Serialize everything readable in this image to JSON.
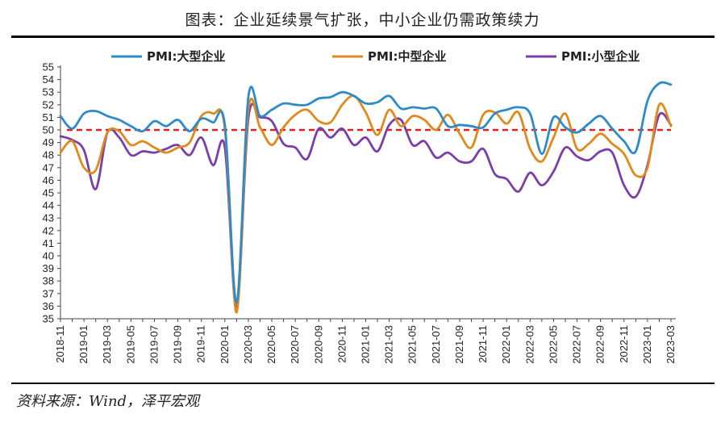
{
  "title": "图表：企业延续景气扩张，中小企业仍需政策续力",
  "source": "资料来源：Wind，泽平宏观",
  "chart_data": {
    "type": "line",
    "ylim": [
      35,
      55
    ],
    "yticks": [
      35,
      36,
      37,
      38,
      39,
      40,
      41,
      42,
      43,
      44,
      45,
      46,
      47,
      48,
      49,
      50,
      51,
      52,
      53,
      54,
      55
    ],
    "x": [
      "2018-11",
      "2018-12",
      "2019-01",
      "2019-02",
      "2019-03",
      "2019-04",
      "2019-05",
      "2019-06",
      "2019-07",
      "2019-08",
      "2019-09",
      "2019-10",
      "2019-11",
      "2019-12",
      "2020-01",
      "2020-02",
      "2020-03",
      "2020-04",
      "2020-05",
      "2020-06",
      "2020-07",
      "2020-08",
      "2020-09",
      "2020-10",
      "2020-11",
      "2020-12",
      "2021-01",
      "2021-02",
      "2021-03",
      "2021-04",
      "2021-05",
      "2021-06",
      "2021-07",
      "2021-08",
      "2021-09",
      "2021-10",
      "2021-11",
      "2021-12",
      "2022-01",
      "2022-02",
      "2022-03",
      "2022-04",
      "2022-05",
      "2022-06",
      "2022-07",
      "2022-08",
      "2022-09",
      "2022-10",
      "2022-11",
      "2022-12",
      "2023-01",
      "2023-02",
      "2023-03"
    ],
    "xtick_labels": [
      "2018-11",
      "2019-01",
      "2019-03",
      "2019-05",
      "2019-07",
      "2019-09",
      "2019-11",
      "2020-01",
      "2020-03",
      "2020-05",
      "2020-07",
      "2020-09",
      "2020-11",
      "2021-01",
      "2021-03",
      "2021-05",
      "2021-07",
      "2021-09",
      "2021-11",
      "2022-01",
      "2022-03",
      "2022-05",
      "2022-07",
      "2022-09",
      "2022-11",
      "2023-01",
      "2023-03"
    ],
    "reference_line": {
      "y": 50,
      "color": "#e02020"
    },
    "legend_placement": "top",
    "grid": false,
    "series": [
      {
        "name": "PMI:大型企业",
        "color": "#2e8bc8",
        "values": [
          51.1,
          50.1,
          51.3,
          51.5,
          51.1,
          50.8,
          50.3,
          49.9,
          50.7,
          50.3,
          50.8,
          49.9,
          50.9,
          50.6,
          50.4,
          36.3,
          52.6,
          51.1,
          51.6,
          52.1,
          52.0,
          52.0,
          52.5,
          52.6,
          53.0,
          52.7,
          52.1,
          52.2,
          52.7,
          51.7,
          51.8,
          51.7,
          51.7,
          50.3,
          50.4,
          50.3,
          50.2,
          51.3,
          51.6,
          51.8,
          51.3,
          48.1,
          51.0,
          50.2,
          49.8,
          50.5,
          51.1,
          50.1,
          49.1,
          48.3,
          52.3,
          53.7,
          53.6
        ]
      },
      {
        "name": "PMI:中型企业",
        "color": "#e08a1e",
        "values": [
          48.2,
          49.1,
          47.0,
          46.8,
          49.8,
          49.9,
          48.8,
          49.1,
          48.6,
          48.2,
          48.6,
          49.0,
          51.1,
          51.3,
          50.1,
          35.5,
          51.6,
          50.2,
          48.8,
          50.2,
          51.2,
          51.6,
          50.7,
          50.6,
          52.0,
          52.7,
          51.4,
          49.6,
          51.6,
          50.3,
          51.1,
          50.8,
          50.0,
          51.2,
          49.7,
          48.6,
          51.2,
          51.4,
          50.5,
          51.4,
          48.5,
          47.5,
          49.4,
          51.3,
          48.5,
          48.9,
          49.7,
          48.9,
          48.1,
          46.4,
          47.0,
          52.0,
          50.3
        ]
      },
      {
        "name": "PMI:小型企业",
        "color": "#7b3fa8",
        "values": [
          49.5,
          49.2,
          48.4,
          45.3,
          49.8,
          49.4,
          48.0,
          48.3,
          48.2,
          48.5,
          48.8,
          48.0,
          49.4,
          47.2,
          48.6,
          35.8,
          50.9,
          51.0,
          50.7,
          48.9,
          48.6,
          47.7,
          50.1,
          49.4,
          50.1,
          48.8,
          49.4,
          48.3,
          50.4,
          50.8,
          48.8,
          49.1,
          47.8,
          48.2,
          47.5,
          47.5,
          48.5,
          46.5,
          46.1,
          45.1,
          46.6,
          45.6,
          46.7,
          48.6,
          47.9,
          47.6,
          48.3,
          48.2,
          45.6,
          44.7,
          47.2,
          51.2,
          50.4
        ]
      }
    ]
  }
}
